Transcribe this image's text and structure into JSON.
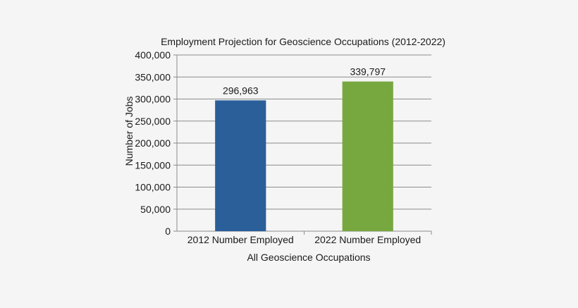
{
  "chart_data": {
    "type": "bar",
    "title": "Employment Projection for Geoscience Occupations (2012-2022)",
    "xlabel": "All Geoscience Occupations",
    "ylabel": "Number of Jobs",
    "categories": [
      "2012 Number Employed",
      "2022 Number Employed"
    ],
    "values": [
      296963,
      339797
    ],
    "value_labels": [
      "296,963",
      "339,797"
    ],
    "bar_colors": [
      "#2a5f9a",
      "#77a840"
    ],
    "ylim": [
      0,
      400000
    ],
    "yticks": [
      0,
      50000,
      100000,
      150000,
      200000,
      250000,
      300000,
      350000,
      400000
    ],
    "ytick_labels": [
      "0",
      "50,000",
      "100,000",
      "150,000",
      "200,000",
      "250,000",
      "300,000",
      "350,000",
      "400,000"
    ],
    "grid": true,
    "legend": "none"
  },
  "colors": {
    "background": "#f5f5f5",
    "gridline": "#8c8c8c",
    "axis": "#8c8c8c",
    "text": "#1a1a1a"
  }
}
